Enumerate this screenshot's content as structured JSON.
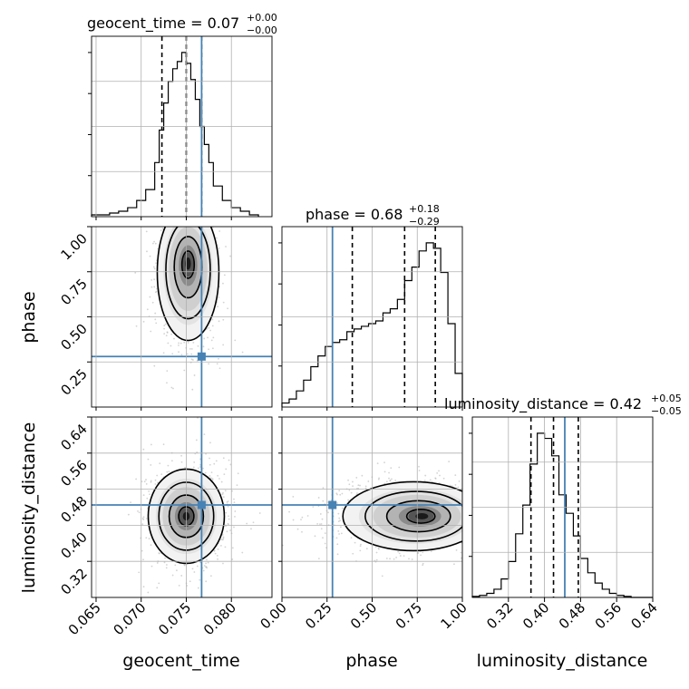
{
  "chart_data": {
    "type": "corner",
    "parameters": [
      "geocent_time",
      "phase",
      "luminosity_distance"
    ],
    "titles": [
      {
        "param": "geocent_time",
        "median": "0.07",
        "plus": "+0.00",
        "minus": "−0.00"
      },
      {
        "param": "phase",
        "median": "0.68",
        "plus": "+0.18",
        "minus": "−0.29"
      },
      {
        "param": "luminosity_distance",
        "median": "0.42",
        "plus": "+0.05",
        "minus": "−0.05"
      }
    ],
    "ranges": {
      "geocent_time": [
        0.0645,
        0.0845
      ],
      "phase": [
        0.0,
        1.0
      ],
      "luminosity_distance": [
        0.24,
        0.64
      ]
    },
    "ticks": {
      "geocent_time": [
        "0.065",
        "0.070",
        "0.075",
        "0.080"
      ],
      "phase": [
        "0.00",
        "0.25",
        "0.50",
        "0.75",
        "1.00"
      ],
      "luminosity_distance": [
        "0.32",
        "0.40",
        "0.48",
        "0.56",
        "0.64"
      ]
    },
    "ticks_y": {
      "phase": [
        "0.25",
        "0.50",
        "0.75",
        "1.00"
      ],
      "luminosity_distance": [
        "0.32",
        "0.40",
        "0.48",
        "0.56",
        "0.64"
      ]
    },
    "truths": {
      "geocent_time": 0.0767,
      "phase": 0.28,
      "luminosity_distance": 0.445
    },
    "quantiles": {
      "geocent_time": [
        0.0723,
        0.075,
        0.0767
      ],
      "phase": [
        0.39,
        0.68,
        0.85
      ],
      "luminosity_distance": [
        0.37,
        0.42,
        0.475
      ]
    },
    "histograms": {
      "geocent_time": {
        "bins": [
          0.0645,
          0.0665,
          0.0685,
          0.0705,
          0.0725,
          0.0745,
          0.0765,
          0.0785,
          0.0805,
          0.0825,
          0.0845
        ],
        "edges": [
          0.0645,
          0.0655,
          0.0665,
          0.0675,
          0.0685,
          0.0695,
          0.0705,
          0.0715,
          0.072,
          0.0725,
          0.073,
          0.0735,
          0.074,
          0.0745,
          0.075,
          0.0755,
          0.076,
          0.0765,
          0.077,
          0.0775,
          0.078,
          0.079,
          0.08,
          0.081,
          0.082,
          0.083
        ],
        "counts": [
          1,
          1,
          2,
          3,
          5,
          9,
          15,
          30,
          48,
          63,
          75,
          82,
          86,
          91,
          85,
          76,
          65,
          50,
          40,
          30,
          17,
          9,
          5,
          3,
          1
        ]
      },
      "phase": {
        "edges": [
          0.0,
          0.04,
          0.08,
          0.12,
          0.16,
          0.2,
          0.24,
          0.28,
          0.32,
          0.36,
          0.4,
          0.44,
          0.48,
          0.52,
          0.56,
          0.6,
          0.64,
          0.68,
          0.72,
          0.76,
          0.8,
          0.84,
          0.88,
          0.92,
          0.96,
          1.0
        ],
        "counts": [
          3,
          6,
          12,
          20,
          30,
          38,
          45,
          48,
          50,
          56,
          58,
          60,
          62,
          64,
          70,
          73,
          80,
          94,
          104,
          116,
          122,
          118,
          100,
          62,
          25
        ]
      },
      "luminosity_distance": {
        "edges": [
          0.24,
          0.256,
          0.272,
          0.288,
          0.304,
          0.32,
          0.336,
          0.352,
          0.368,
          0.384,
          0.4,
          0.416,
          0.432,
          0.448,
          0.464,
          0.48,
          0.496,
          0.512,
          0.528,
          0.544,
          0.56,
          0.576,
          0.592,
          0.608,
          0.624,
          0.64
        ],
        "counts": [
          1,
          2,
          4,
          8,
          18,
          35,
          62,
          90,
          130,
          160,
          155,
          138,
          100,
          82,
          60,
          38,
          24,
          14,
          8,
          4,
          2,
          1,
          0,
          0,
          0
        ]
      }
    },
    "density_2d": [
      {
        "x": "geocent_time",
        "y": "phase",
        "peak": [
          0.0752,
          0.8
        ]
      },
      {
        "x": "geocent_time",
        "y": "luminosity_distance",
        "peak": [
          0.075,
          0.42
        ]
      },
      {
        "x": "phase",
        "y": "luminosity_distance",
        "peak": [
          0.78,
          0.42
        ]
      }
    ],
    "grid": true,
    "truth_color": "#4682b4",
    "hist_color": "#000000"
  }
}
